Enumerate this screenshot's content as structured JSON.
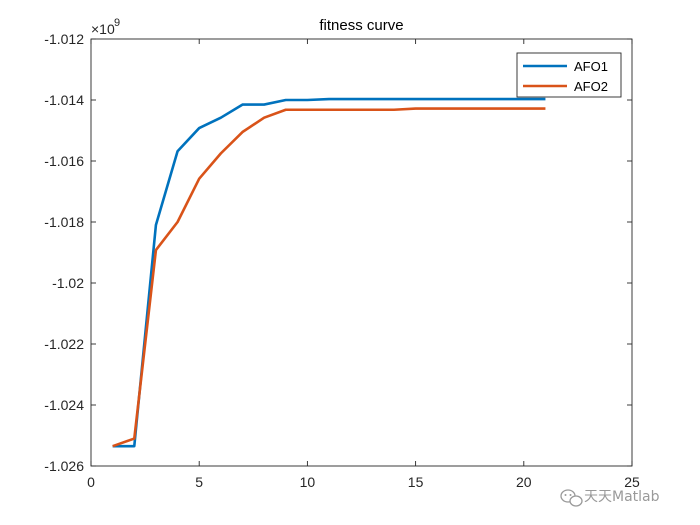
{
  "chart_data": {
    "type": "line",
    "title": "fitness curve",
    "xlabel": "",
    "ylabel": "",
    "xlim": [
      0,
      25
    ],
    "ylim": [
      -1.026,
      -1.012
    ],
    "y_exponent_label": {
      "base": "×10",
      "power": "9"
    },
    "x_ticks": [
      0,
      5,
      10,
      15,
      20,
      25
    ],
    "x_tick_labels": [
      "0",
      "5",
      "10",
      "15",
      "20",
      "25"
    ],
    "y_ticks": [
      -1.012,
      -1.014,
      -1.016,
      -1.018,
      -1.02,
      -1.022,
      -1.024,
      -1.026
    ],
    "y_tick_labels": [
      "-1.012",
      "-1.014",
      "-1.016",
      "-1.018",
      "-1.02",
      "-1.022",
      "-1.024",
      "-1.026"
    ],
    "grid": false,
    "legend_position": "top-right",
    "x": [
      1,
      2,
      3,
      4,
      5,
      6,
      7,
      8,
      9,
      10,
      11,
      12,
      13,
      14,
      15,
      16,
      17,
      18,
      19,
      20,
      21
    ],
    "series": [
      {
        "name": "AFO1",
        "color": "#0072BD",
        "values": [
          -1.02535,
          -1.02535,
          -1.0181,
          -1.01568,
          -1.01492,
          -1.01458,
          -1.01415,
          -1.01415,
          -1.014,
          -1.014,
          -1.01397,
          -1.01397,
          -1.01397,
          -1.01397,
          -1.01397,
          -1.01397,
          -1.01397,
          -1.01397,
          -1.01397,
          -1.01397,
          -1.01397
        ]
      },
      {
        "name": "AFO2",
        "color": "#D95319",
        "values": [
          -1.02535,
          -1.0251,
          -1.01892,
          -1.018,
          -1.01658,
          -1.01575,
          -1.01505,
          -1.01458,
          -1.01432,
          -1.01432,
          -1.01432,
          -1.01432,
          -1.01432,
          -1.01432,
          -1.01428,
          -1.01428,
          -1.01428,
          -1.01428,
          -1.01428,
          -1.01428,
          -1.01428
        ]
      }
    ]
  },
  "watermark": {
    "text": "天天Matlab"
  }
}
